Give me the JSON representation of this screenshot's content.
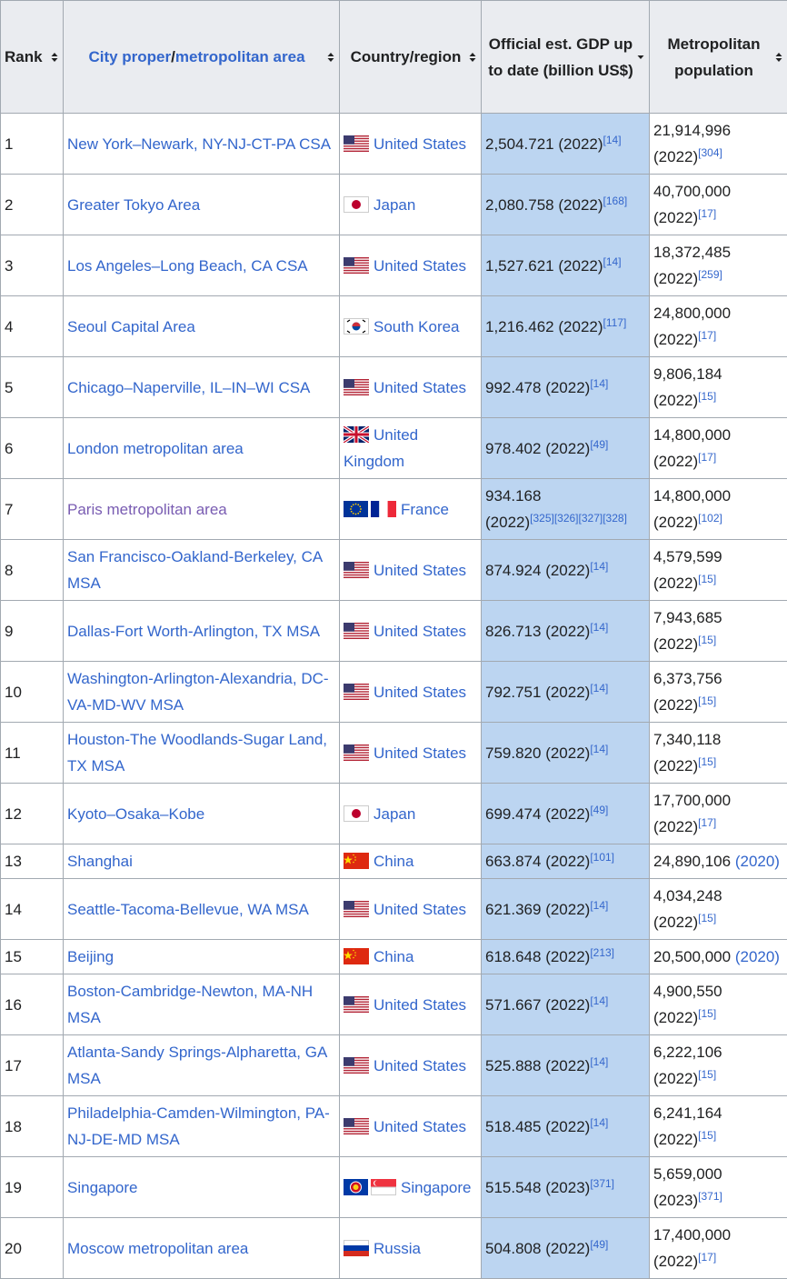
{
  "header": {
    "rank": "Rank",
    "city": [
      "City proper",
      "/",
      "metropolitan area"
    ],
    "country": "Country/region",
    "gdp": "Official est. GDP up to date (billion US$)",
    "population": "Metropolitan population"
  },
  "rows": [
    {
      "rank": "1",
      "city": "New York–Newark, NY-NJ-CT-PA CSA",
      "country": "United States",
      "gdp": {
        "value": "2,504.721",
        "year": "(2022)",
        "ref": "[14]"
      },
      "population": {
        "value": "21,914,996",
        "year": "(2022)",
        "ref": "[304]"
      }
    },
    {
      "rank": "2",
      "city": "Greater Tokyo Area",
      "country": "Japan",
      "gdp": {
        "value": "2,080.758",
        "year": "(2022)",
        "ref": "[168]"
      },
      "population": {
        "value": "40,700,000",
        "year": "(2022)",
        "ref": "[17]"
      }
    },
    {
      "rank": "3",
      "city": "Los Angeles–Long Beach, CA CSA",
      "country": "United States",
      "gdp": {
        "value": "1,527.621",
        "year": "(2022)",
        "ref": "[14]"
      },
      "population": {
        "value": "18,372,485",
        "year": "(2022)",
        "ref": "[259]"
      }
    },
    {
      "rank": "4",
      "city": "Seoul Capital Area",
      "country": "South Korea",
      "gdp": {
        "value": "1,216.462",
        "year": "(2022)",
        "ref": "[117]"
      },
      "population": {
        "value": "24,800,000",
        "year": "(2022)",
        "ref": "[17]"
      }
    },
    {
      "rank": "5",
      "city": "Chicago–Naperville, IL–IN–WI CSA",
      "country": "United States",
      "gdp": {
        "value": "992.478",
        "year": "(2022)",
        "ref": "[14]"
      },
      "population": {
        "value": "9,806,184",
        "year": "(2022)",
        "ref": "[15]"
      }
    },
    {
      "rank": "6",
      "city": "London metropolitan area",
      "country": "United Kingdom",
      "gdp": {
        "value": "978.402",
        "year": "(2022)",
        "ref": "[49]"
      },
      "population": {
        "value": "14,800,000",
        "year": "(2022)",
        "ref": "[17]"
      }
    },
    {
      "rank": "7",
      "city": "Paris metropolitan area",
      "country": "France",
      "gdp": {
        "value": "934.168",
        "year": "(2022)",
        "ref": "[325][326][327][328]"
      },
      "population": {
        "value": "14,800,000",
        "year": "(2022)",
        "ref": "[102]"
      }
    },
    {
      "rank": "8",
      "city": "San Francisco-Oakland-Berkeley, CA MSA",
      "country": "United States",
      "gdp": {
        "value": "874.924",
        "year": "(2022)",
        "ref": "[14]"
      },
      "population": {
        "value": "4,579,599",
        "year": "(2022)",
        "ref": "[15]"
      }
    },
    {
      "rank": "9",
      "city": "Dallas-Fort Worth-Arlington, TX MSA",
      "country": "United States",
      "gdp": {
        "value": "826.713",
        "year": "(2022)",
        "ref": "[14]"
      },
      "population": {
        "value": "7,943,685",
        "year": "(2022)",
        "ref": "[15]"
      }
    },
    {
      "rank": "10",
      "city": "Washington-Arlington-Alexandria, DC-VA-MD-WV MSA",
      "country": "United States",
      "gdp": {
        "value": "792.751",
        "year": "(2022)",
        "ref": "[14]"
      },
      "population": {
        "value": "6,373,756",
        "year": "(2022)",
        "ref": "[15]"
      }
    },
    {
      "rank": "11",
      "city": "Houston-The Woodlands-Sugar Land, TX MSA",
      "country": "United States",
      "gdp": {
        "value": "759.820",
        "year": "(2022)",
        "ref": "[14]"
      },
      "population": {
        "value": "7,340,118",
        "year": "(2022)",
        "ref": "[15]"
      }
    },
    {
      "rank": "12",
      "city": "Kyoto–Osaka–Kobe",
      "country": "Japan",
      "gdp": {
        "value": "699.474",
        "year": "(2022)",
        "ref": "[49]"
      },
      "population": {
        "value": "17,700,000",
        "year": "(2022)",
        "ref": "[17]"
      }
    },
    {
      "rank": "13",
      "city": "Shanghai",
      "country": "China",
      "gdp": {
        "value": "663.874",
        "year": "(2022)",
        "ref": "[101]"
      },
      "population": {
        "value": "24,890,106",
        "year": "(2020)"
      }
    },
    {
      "rank": "14",
      "city": "Seattle-Tacoma-Bellevue, WA MSA",
      "country": "United States",
      "gdp": {
        "value": "621.369",
        "year": "(2022)",
        "ref": "[14]"
      },
      "population": {
        "value": "4,034,248",
        "year": "(2022)",
        "ref": "[15]"
      }
    },
    {
      "rank": "15",
      "city": "Beijing",
      "country": "China",
      "gdp": {
        "value": "618.648",
        "year": "(2022)",
        "ref": "[213]"
      },
      "population": {
        "value": "20,500,000",
        "year": "(2020)"
      }
    },
    {
      "rank": "16",
      "city": "Boston-Cambridge-Newton, MA-NH MSA",
      "country": "United States",
      "gdp": {
        "value": "571.667",
        "year": "(2022)",
        "ref": "[14]"
      },
      "population": {
        "value": "4,900,550",
        "year": "(2022)",
        "ref": "[15]"
      }
    },
    {
      "rank": "17",
      "city": "Atlanta-Sandy Springs-Alpharetta, GA MSA",
      "country": "United States",
      "gdp": {
        "value": "525.888",
        "year": "(2022)",
        "ref": "[14]"
      },
      "population": {
        "value": "6,222,106",
        "year": "(2022)",
        "ref": "[15]"
      }
    },
    {
      "rank": "18",
      "city": "Philadelphia-Camden-Wilmington, PA-NJ-DE-MD MSA",
      "country": "United States",
      "gdp": {
        "value": "518.485",
        "year": "(2022)",
        "ref": "[14]"
      },
      "population": {
        "value": "6,241,164",
        "year": "(2022)",
        "ref": "[15]"
      }
    },
    {
      "rank": "19",
      "city": "Singapore",
      "country": "Singapore",
      "gdp": {
        "value": "515.548",
        "year": "(2023)",
        "ref": "[371]"
      },
      "population": {
        "value": "5,659,000",
        "year": "(2023)",
        "ref": "[371]"
      }
    },
    {
      "rank": "20",
      "city": "Moscow metropolitan area",
      "country": "Russia",
      "gdp": {
        "value": "504.808",
        "year": "(2022)",
        "ref": "[49]"
      },
      "population": {
        "value": "17,400,000",
        "year": "(2022)",
        "ref": "[17]"
      }
    }
  ]
}
